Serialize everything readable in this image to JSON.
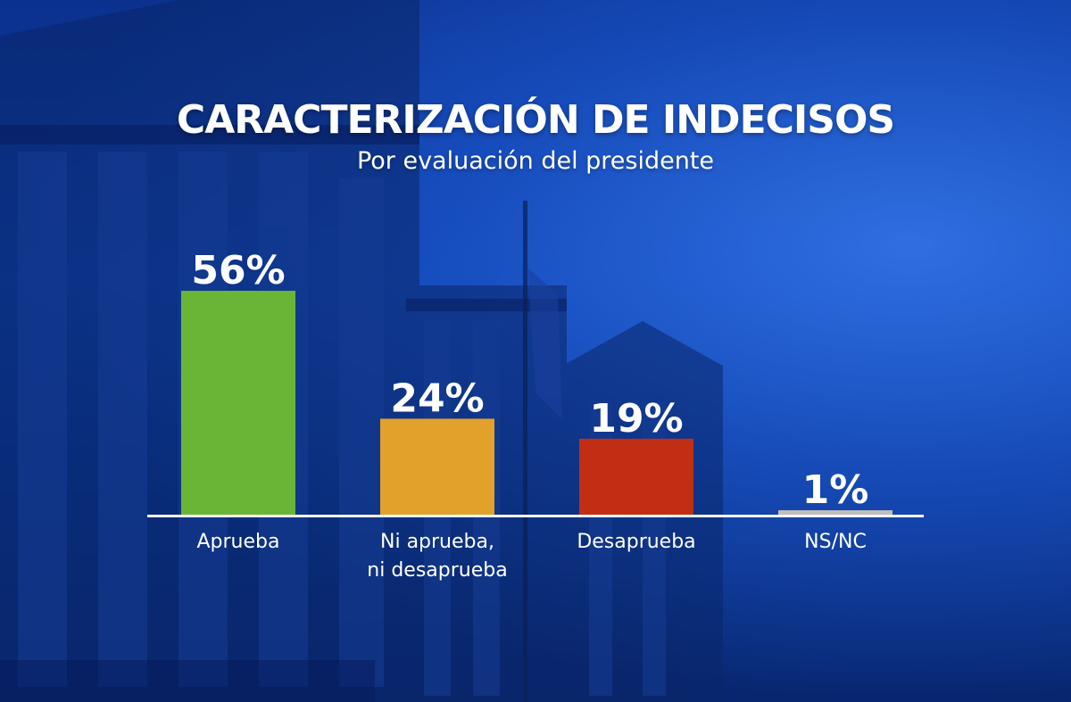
{
  "header": {
    "title": "CARACTERIZACIÓN DE INDECISOS",
    "subtitle": "Por evaluación del presidente"
  },
  "chart_data": {
    "type": "bar",
    "title": "CARACTERIZACIÓN DE INDECISOS",
    "subtitle": "Por evaluación del presidente",
    "categories": [
      [
        "Aprueba"
      ],
      [
        "Ni aprueba,",
        "ni desaprueba"
      ],
      [
        "Desaprueba"
      ],
      [
        "NS/NC"
      ]
    ],
    "values": [
      56,
      24,
      19,
      1
    ],
    "value_labels": [
      "56%",
      "24%",
      "19%",
      "1%"
    ],
    "colors": [
      "#6ab536",
      "#e2a12b",
      "#c22e14",
      "#bdbdbd"
    ],
    "ylim": [
      0,
      56
    ],
    "grid": false,
    "legend": "none"
  }
}
